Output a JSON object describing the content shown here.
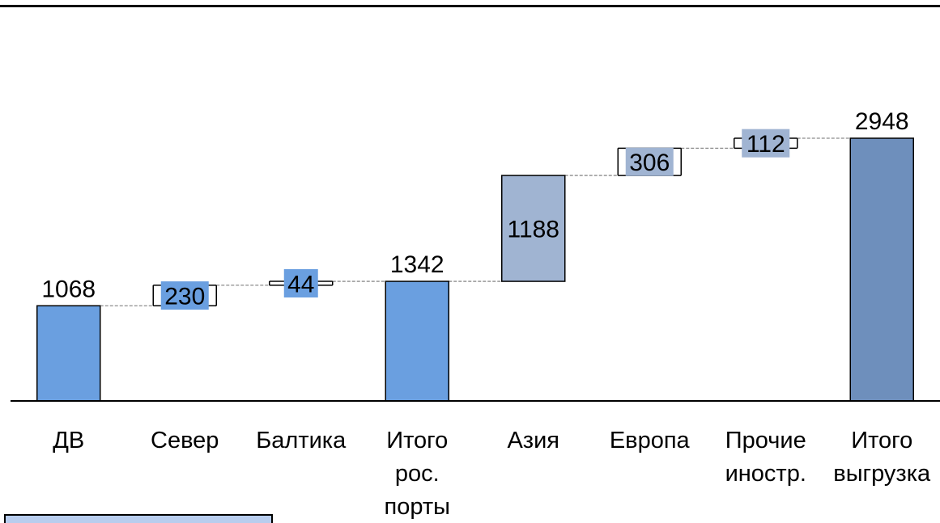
{
  "chart_data": {
    "type": "waterfall",
    "categories": [
      [
        "ДВ"
      ],
      [
        "Север"
      ],
      [
        "Балтика"
      ],
      [
        "Итого",
        "рос.",
        "порты"
      ],
      [
        "Азия"
      ],
      [
        "Европа"
      ],
      [
        "Прочие",
        "иностр."
      ],
      [
        "Итого",
        "выгрузка"
      ]
    ],
    "values": [
      1068,
      230,
      44,
      1342,
      1188,
      306,
      112,
      2948
    ],
    "kinds": [
      "total",
      "delta",
      "delta",
      "total",
      "delta",
      "delta",
      "delta",
      "total"
    ],
    "labels": [
      "1068",
      "230",
      "44",
      "1342",
      "1188",
      "306",
      "112",
      "2948"
    ],
    "colors": [
      "#6a9fe0",
      "#6a9fe0",
      "#6a9fe0",
      "#6a9fe0",
      "#a0b4d2",
      "#a0b4d2",
      "#a0b4d2",
      "#6e8fbc"
    ],
    "ylim": [
      0,
      3250
    ],
    "title": "",
    "xlabel": "",
    "ylabel": "",
    "legend": "none",
    "grid": false
  }
}
